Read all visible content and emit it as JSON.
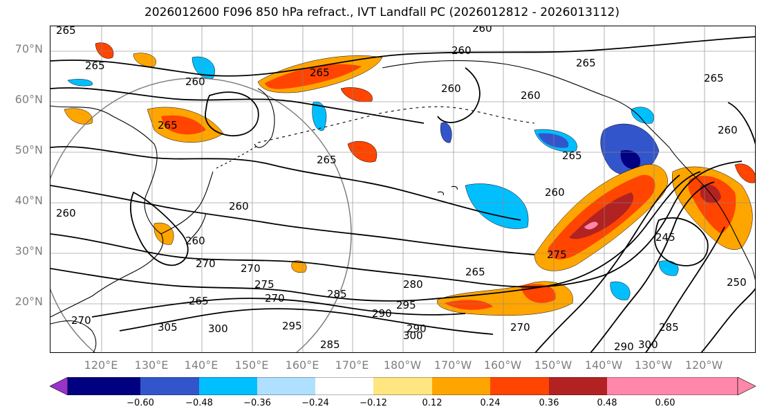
{
  "title": "2026012600 F096 850 hPa refract., IVT Landfall PC (2026012812 - 2026013112)",
  "lat_labels": [
    "70°N",
    "60°N",
    "50°N",
    "40°N",
    "30°N",
    "20°N"
  ],
  "lon_labels": [
    "120°E",
    "130°E",
    "140°E",
    "150°E",
    "160°E",
    "170°E",
    "180°W",
    "170°W",
    "160°W",
    "150°W",
    "140°W",
    "130°W",
    "120°W"
  ],
  "contour_labels": [
    "260",
    "260",
    "265",
    "265",
    "260",
    "265",
    "265",
    "260",
    "265",
    "260",
    "260",
    "265",
    "260",
    "260",
    "270",
    "270",
    "275",
    "270",
    "265",
    "280",
    "285",
    "290",
    "295",
    "290",
    "295",
    "300",
    "305",
    "300",
    "285",
    "270",
    "265",
    "260",
    "245",
    "250",
    "285",
    "290",
    "300",
    "265",
    "260",
    "265",
    "270",
    "275"
  ],
  "colorbar": {
    "ticks": [
      "−0.60",
      "−0.48",
      "−0.36",
      "−0.24",
      "−0.12",
      "0.12",
      "0.24",
      "0.36",
      "0.48",
      "0.60"
    ],
    "colors": [
      "#9933cc",
      "#000080",
      "#3355cc",
      "#00bfff",
      "#b0e0ff",
      "#ffffff",
      "#ffe680",
      "#ffa500",
      "#ff4500",
      "#b22222",
      "#ff88aa",
      "#ff88aa"
    ]
  },
  "colors": {
    "axis_label": "#7f7f7f",
    "contour": "#000000",
    "coast": "#000000"
  }
}
